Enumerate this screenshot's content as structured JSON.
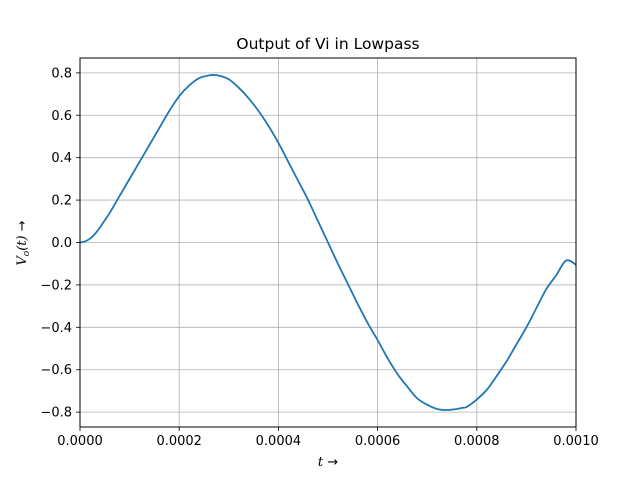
{
  "chart_data": {
    "type": "line",
    "title": "Output of Vi in Lowpass",
    "xlabel_var": "t",
    "xlabel_arrow": " →",
    "ylabel_var": "V",
    "ylabel_sub": "o",
    "ylabel_rest": "(t)",
    "ylabel_arrow": " →",
    "xlim": [
      0,
      0.001
    ],
    "ylim": [
      -0.87,
      0.87
    ],
    "x_ticks": [
      0,
      0.0002,
      0.0004,
      0.0006,
      0.0008,
      0.001
    ],
    "x_tick_labels": [
      "0.0000",
      "0.0002",
      "0.0004",
      "0.0006",
      "0.0008",
      "0.0010"
    ],
    "y_ticks": [
      -0.8,
      -0.6,
      -0.4,
      -0.2,
      0.0,
      0.2,
      0.4,
      0.6,
      0.8
    ],
    "y_tick_labels": [
      "−0.8",
      "−0.6",
      "−0.4",
      "−0.2",
      "0.0",
      "0.2",
      "0.4",
      "0.6",
      "0.8"
    ],
    "grid": true,
    "series": [
      {
        "color": "#1f77b4",
        "x": [
          0,
          1e-05,
          2e-05,
          3e-05,
          4e-05,
          5e-05,
          6e-05,
          8e-05,
          0.0001,
          0.00012,
          0.00014,
          0.00016,
          0.00018,
          0.0002,
          0.00022,
          0.00024,
          0.00026,
          0.00027,
          0.00028,
          0.0003,
          0.00032,
          0.00034,
          0.00036,
          0.00038,
          0.0004,
          0.00042,
          0.00044,
          0.00046,
          0.00048,
          0.0005,
          0.00052,
          0.00054,
          0.00056,
          0.00058,
          0.0006,
          0.00062,
          0.00064,
          0.00066,
          0.00068,
          0.0007,
          0.00072,
          0.00074,
          0.00076,
          0.00077,
          0.00078,
          0.0008,
          0.00082,
          0.00084,
          0.00086,
          0.00088,
          0.0009,
          0.00092,
          0.00094,
          0.00096,
          0.00098,
          0.001
        ],
        "y": [
          0.0,
          0.005,
          0.018,
          0.04,
          0.07,
          0.105,
          0.14,
          0.22,
          0.3,
          0.38,
          0.46,
          0.54,
          0.62,
          0.69,
          0.74,
          0.775,
          0.788,
          0.79,
          0.787,
          0.77,
          0.73,
          0.68,
          0.62,
          0.55,
          0.47,
          0.38,
          0.29,
          0.2,
          0.1,
          0.0,
          -0.1,
          -0.195,
          -0.29,
          -0.38,
          -0.46,
          -0.545,
          -0.62,
          -0.68,
          -0.735,
          -0.765,
          -0.785,
          -0.79,
          -0.785,
          -0.78,
          -0.775,
          -0.74,
          -0.695,
          -0.63,
          -0.56,
          -0.48,
          -0.4,
          -0.31,
          -0.22,
          -0.155,
          -0.085,
          -0.105
        ]
      }
    ]
  }
}
